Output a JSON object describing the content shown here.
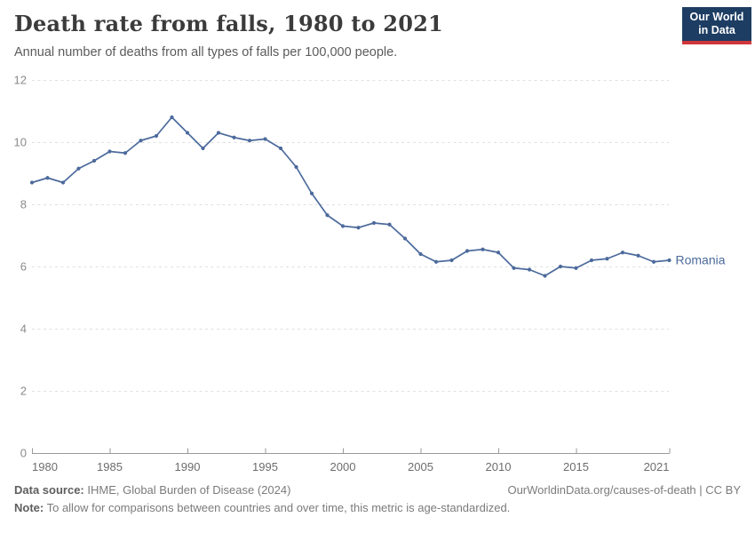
{
  "header": {
    "logo_line1": "Our World",
    "logo_line2": "in Data"
  },
  "footer": {
    "source_label": "Data source:",
    "source_text": " IHME, Global Burden of Disease (2024)",
    "rights_text": "OurWorldinData.org/causes-of-death | CC BY",
    "note_label": "Note:",
    "note_text": " To allow for comparisons between countries and over time, this metric is age-standardized."
  },
  "colors": {
    "series": "#4c6a9c",
    "grid": "#e0e0e0",
    "axis": "#9a9a9a",
    "y_tick_label": "#8a8a8a",
    "x_tick_label": "#6d6d6d",
    "logo_bg": "#1d3d63",
    "logo_red": "#d0363a"
  },
  "chart_data": {
    "type": "line",
    "title": "Death rate from falls, 1980 to 2021",
    "subtitle": "Annual number of deaths from all types of falls per 100,000 people.",
    "xlim": [
      1980,
      2021
    ],
    "ylim": [
      0,
      12
    ],
    "x_ticks": [
      1980,
      1985,
      1990,
      1995,
      2000,
      2005,
      2010,
      2015,
      2021
    ],
    "y_ticks": [
      0,
      2,
      4,
      6,
      8,
      10,
      12
    ],
    "grid": "horizontal-dashed",
    "legend_position": "end-of-line-label",
    "series": [
      {
        "name": "Romania",
        "end_label": "Romania",
        "years": [
          1980,
          1981,
          1982,
          1983,
          1984,
          1985,
          1986,
          1987,
          1988,
          1989,
          1990,
          1991,
          1992,
          1993,
          1994,
          1995,
          1996,
          1997,
          1998,
          1999,
          2000,
          2001,
          2002,
          2003,
          2004,
          2005,
          2006,
          2007,
          2008,
          2009,
          2010,
          2011,
          2012,
          2013,
          2014,
          2015,
          2016,
          2017,
          2018,
          2019,
          2020,
          2021
        ],
        "values": [
          8.7,
          8.85,
          8.7,
          9.15,
          9.4,
          9.7,
          9.65,
          10.05,
          10.2,
          10.8,
          10.3,
          9.8,
          10.3,
          10.15,
          10.05,
          10.1,
          9.8,
          9.2,
          8.35,
          7.65,
          7.3,
          7.25,
          7.4,
          7.35,
          6.9,
          6.4,
          6.15,
          6.2,
          6.5,
          6.55,
          6.45,
          5.95,
          5.9,
          5.7,
          6.0,
          5.95,
          6.2,
          6.25,
          6.45,
          6.35,
          6.15,
          6.2
        ]
      }
    ]
  }
}
